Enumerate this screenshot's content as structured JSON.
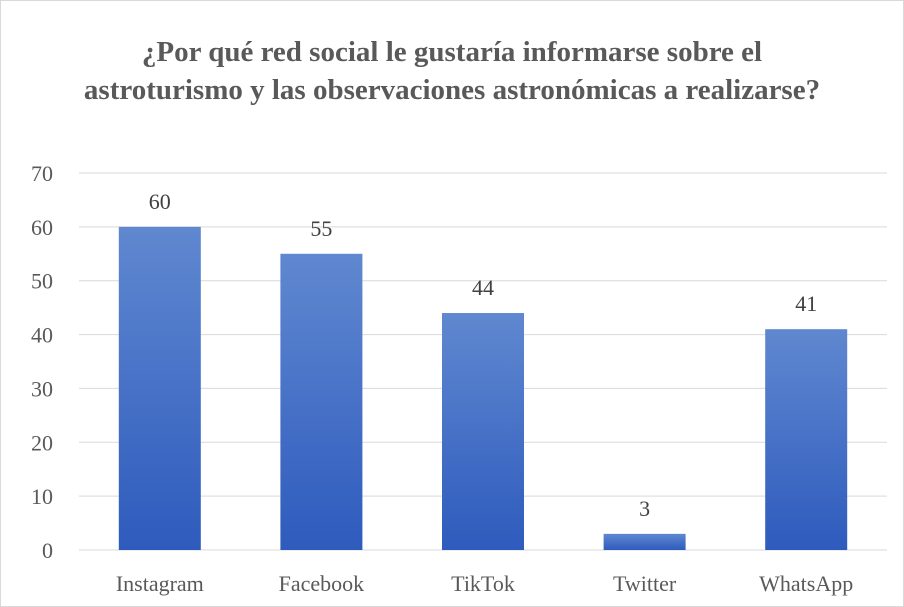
{
  "chart_data": {
    "type": "bar",
    "title": "¿Por qué red social le gustaría informarse sobre el astroturismo y las observaciones astronómicas a realizarse?",
    "xlabel": "",
    "ylabel": "",
    "categories": [
      "Instagram",
      "Facebook",
      "TikTok",
      "Twitter",
      "WhatsApp"
    ],
    "values": [
      60,
      55,
      44,
      3,
      41
    ],
    "ylim": [
      0,
      70
    ],
    "yticks": [
      0,
      10,
      20,
      30,
      40,
      50,
      60,
      70
    ],
    "grid": true,
    "legend": "none",
    "bar_color_top": "#6088d0",
    "bar_color_bottom": "#2e5bbd",
    "grid_color": "#d9d9d9"
  }
}
